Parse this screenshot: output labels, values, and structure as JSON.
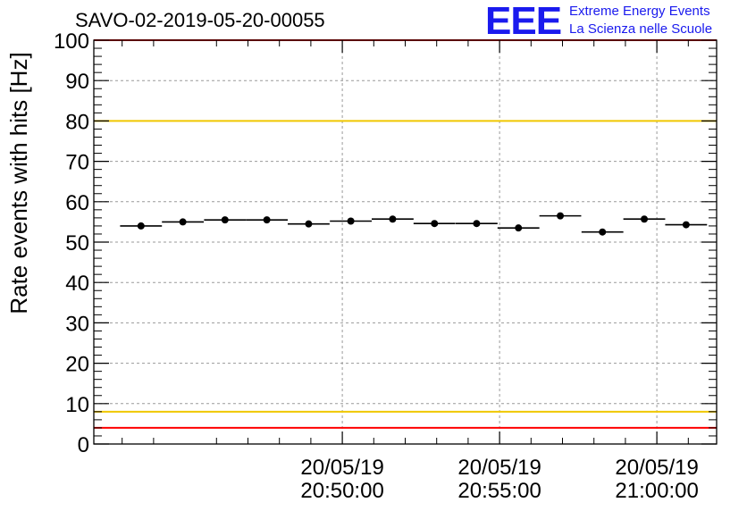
{
  "header": {
    "title": "SAVO-02-2019-05-20-00055",
    "logo_text": "EEE",
    "logo_line1": "Extreme Energy Events",
    "logo_line2": "La Scienza nelle Scuole",
    "logo_color": "#1a1aee"
  },
  "chart_data": {
    "type": "scatter",
    "title": "SAVO-02-2019-05-20-00055",
    "xlabel": "",
    "ylabel": "Rate events with hits [Hz]",
    "ylim": [
      0,
      100
    ],
    "ytick_step": 10,
    "xlim_minutes": [
      -7.9,
      11.9
    ],
    "x_unit": "minutes relative to 20/05/19 20:50:00",
    "xtick_labels": [
      {
        "t": 0,
        "date": "20/05/19",
        "time": "20:50:00"
      },
      {
        "t": 5,
        "date": "20/05/19",
        "time": "20:55:00"
      },
      {
        "t": 10,
        "date": "20/05/19",
        "time": "21:00:00"
      }
    ],
    "grid": true,
    "series": [
      {
        "name": "rate",
        "bin_width_minutes": 1.33,
        "x": [
          -6.4,
          -5.07,
          -3.73,
          -2.4,
          -1.07,
          0.27,
          1.6,
          2.93,
          4.27,
          5.6,
          6.93,
          8.27,
          9.6,
          10.93
        ],
        "y": [
          54.0,
          55.0,
          55.5,
          55.5,
          54.5,
          55.2,
          55.7,
          54.6,
          54.6,
          53.5,
          56.5,
          52.5,
          55.7,
          54.3
        ]
      }
    ],
    "reference_lines": [
      {
        "y": 100,
        "color": "#ff0000"
      },
      {
        "y": 80,
        "color": "#f0c800"
      },
      {
        "y": 8,
        "color": "#f0c800"
      },
      {
        "y": 4,
        "color": "#ff0000"
      }
    ]
  }
}
